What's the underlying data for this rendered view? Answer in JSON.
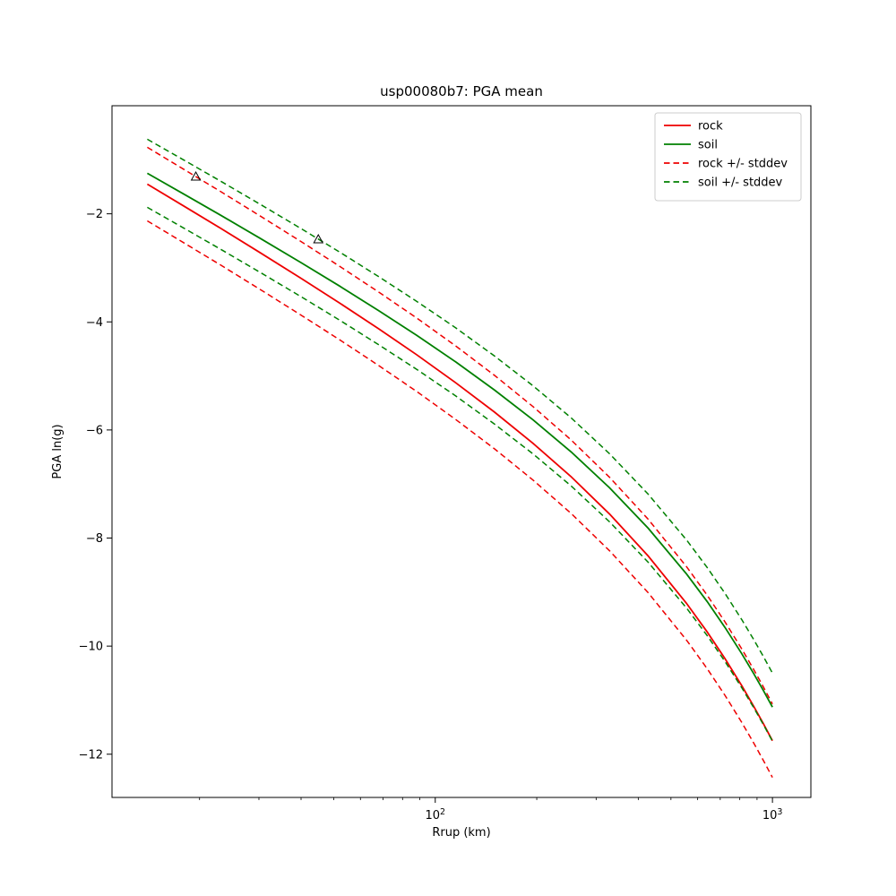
{
  "title": "usp00080b7: PGA mean",
  "chart_data": {
    "type": "line",
    "title": "usp00080b7: PGA mean",
    "xlabel": "Rrup (km)",
    "ylabel": "PGA ln(g)",
    "xscale": "log",
    "xlim": [
      11,
      1300
    ],
    "ylim": [
      -12.8,
      0
    ],
    "xticks": [
      100,
      1000
    ],
    "yticks": [
      -2,
      -4,
      -6,
      -8,
      -10,
      -12
    ],
    "grid": false,
    "frame_color": "#000000",
    "x": [
      14,
      18,
      23,
      30,
      40,
      52,
      68,
      88,
      115,
      150,
      195,
      253,
      329,
      428,
      556,
      640,
      723,
      810,
      880,
      940,
      1000
    ],
    "series": [
      {
        "name": "rock",
        "color": "#ee0000",
        "style": "solid",
        "sigma": 0.68,
        "values": [
          -1.45,
          -1.86,
          -2.262,
          -2.706,
          -3.194,
          -3.649,
          -4.129,
          -4.606,
          -5.126,
          -5.671,
          -6.247,
          -6.866,
          -7.557,
          -8.331,
          -9.209,
          -9.736,
          -10.23,
          -10.727,
          -11.113,
          -11.435,
          -11.751
        ]
      },
      {
        "name": "soil",
        "color": "#008000",
        "style": "solid",
        "sigma": 0.63,
        "values": [
          -1.25,
          -1.638,
          -2.019,
          -2.44,
          -2.903,
          -3.336,
          -3.793,
          -4.247,
          -4.741,
          -5.262,
          -5.813,
          -6.407,
          -7.071,
          -7.817,
          -8.665,
          -9.174,
          -9.653,
          -10.135,
          -10.509,
          -10.822,
          -11.129
        ]
      }
    ],
    "markers": [
      {
        "x": 19.5,
        "y": -1.31,
        "shape": "triangle-up",
        "edge_color": "#000000",
        "fill": "none"
      },
      {
        "x": 45.0,
        "y": -2.47,
        "shape": "triangle-up",
        "edge_color": "#000000",
        "fill": "none"
      }
    ],
    "legend": {
      "position": "upper right",
      "edge_color": "#cccccc",
      "entries": [
        {
          "label": "rock",
          "color": "#ee0000",
          "dash": false
        },
        {
          "label": "soil",
          "color": "#008000",
          "dash": false
        },
        {
          "label": "rock +/- stddev",
          "color": "#ee0000",
          "dash": true
        },
        {
          "label": "soil +/- stddev",
          "color": "#008000",
          "dash": true
        }
      ]
    }
  }
}
